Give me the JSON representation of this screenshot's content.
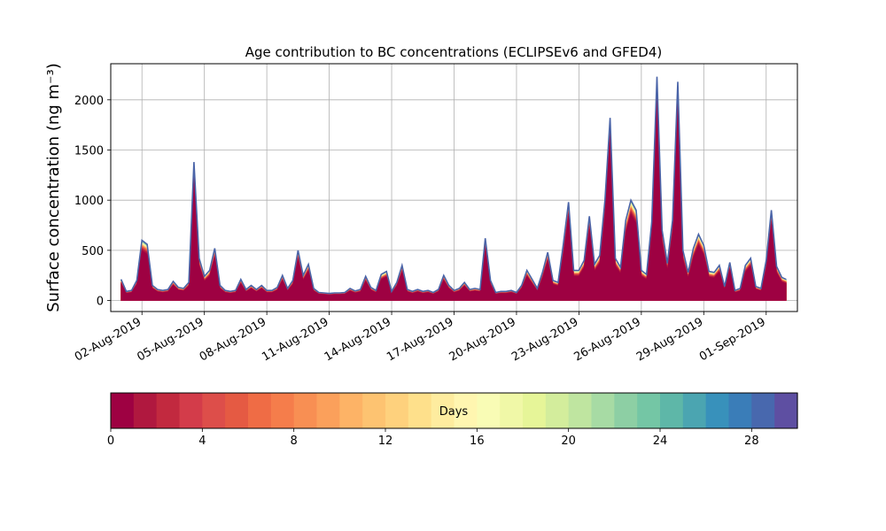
{
  "chart_data": [
    {
      "type": "area",
      "title": "Age contribution to BC concentrations (ECLIPSEv6 and GFED4)",
      "ylabel": "Surface concentration (ng m⁻³)",
      "xlabel": "",
      "grid": true,
      "ylim": [
        -110,
        2360
      ],
      "xlim": [
        "2019-07-31T12:00",
        "2019-09-02T12:00"
      ],
      "y_ticks": [
        0,
        500,
        1000,
        1500,
        2000
      ],
      "x_ticks": [
        "02-Aug-2019",
        "05-Aug-2019",
        "08-Aug-2019",
        "11-Aug-2019",
        "14-Aug-2019",
        "17-Aug-2019",
        "20-Aug-2019",
        "23-Aug-2019",
        "26-Aug-2019",
        "29-Aug-2019",
        "01-Sep-2019"
      ],
      "x_tick_dates": [
        "2019-08-02",
        "2019-08-05",
        "2019-08-08",
        "2019-08-11",
        "2019-08-14",
        "2019-08-17",
        "2019-08-20",
        "2019-08-23",
        "2019-08-26",
        "2019-08-29",
        "2019-09-01"
      ],
      "stacking": "cumulative contribution by age (days), youngest at bottom",
      "series": [
        {
          "total": [
            [
              "2019-08-01T00:00",
              210
            ],
            [
              "2019-08-01T06:00",
              90
            ],
            [
              "2019-08-01T12:00",
              100
            ],
            [
              "2019-08-01T18:00",
              200
            ],
            [
              "2019-08-02T00:00",
              600
            ],
            [
              "2019-08-02T06:00",
              560
            ],
            [
              "2019-08-02T12:00",
              150
            ],
            [
              "2019-08-02T18:00",
              110
            ],
            [
              "2019-08-03T00:00",
              100
            ],
            [
              "2019-08-03T06:00",
              110
            ],
            [
              "2019-08-03T12:00",
              190
            ],
            [
              "2019-08-03T18:00",
              130
            ],
            [
              "2019-08-04T00:00",
              120
            ],
            [
              "2019-08-04T06:00",
              180
            ],
            [
              "2019-08-04T12:00",
              1380
            ],
            [
              "2019-08-04T18:00",
              420
            ],
            [
              "2019-08-05T00:00",
              240
            ],
            [
              "2019-08-05T06:00",
              300
            ],
            [
              "2019-08-05T12:00",
              520
            ],
            [
              "2019-08-05T18:00",
              150
            ],
            [
              "2019-08-06T00:00",
              100
            ],
            [
              "2019-08-06T06:00",
              90
            ],
            [
              "2019-08-06T12:00",
              100
            ],
            [
              "2019-08-06T18:00",
              210
            ],
            [
              "2019-08-07T00:00",
              110
            ],
            [
              "2019-08-07T06:00",
              150
            ],
            [
              "2019-08-07T12:00",
              110
            ],
            [
              "2019-08-07T18:00",
              150
            ],
            [
              "2019-08-08T00:00",
              100
            ],
            [
              "2019-08-08T06:00",
              100
            ],
            [
              "2019-08-08T12:00",
              130
            ],
            [
              "2019-08-08T18:00",
              250
            ],
            [
              "2019-08-09T00:00",
              120
            ],
            [
              "2019-08-09T06:00",
              200
            ],
            [
              "2019-08-09T12:00",
              500
            ],
            [
              "2019-08-09T18:00",
              250
            ],
            [
              "2019-08-10T00:00",
              360
            ],
            [
              "2019-08-10T06:00",
              120
            ],
            [
              "2019-08-10T12:00",
              80
            ],
            [
              "2019-08-10T18:00",
              75
            ],
            [
              "2019-08-11T00:00",
              70
            ],
            [
              "2019-08-11T06:00",
              75
            ],
            [
              "2019-08-11T12:00",
              75
            ],
            [
              "2019-08-11T18:00",
              80
            ],
            [
              "2019-08-12T00:00",
              120
            ],
            [
              "2019-08-12T06:00",
              95
            ],
            [
              "2019-08-12T12:00",
              110
            ],
            [
              "2019-08-12T18:00",
              240
            ],
            [
              "2019-08-13T00:00",
              130
            ],
            [
              "2019-08-13T06:00",
              100
            ],
            [
              "2019-08-13T12:00",
              260
            ],
            [
              "2019-08-13T18:00",
              290
            ],
            [
              "2019-08-14T00:00",
              90
            ],
            [
              "2019-08-14T06:00",
              180
            ],
            [
              "2019-08-14T12:00",
              350
            ],
            [
              "2019-08-14T18:00",
              110
            ],
            [
              "2019-08-15T00:00",
              90
            ],
            [
              "2019-08-15T06:00",
              110
            ],
            [
              "2019-08-15T12:00",
              90
            ],
            [
              "2019-08-15T18:00",
              100
            ],
            [
              "2019-08-16T00:00",
              80
            ],
            [
              "2019-08-16T06:00",
              110
            ],
            [
              "2019-08-16T12:00",
              250
            ],
            [
              "2019-08-16T18:00",
              150
            ],
            [
              "2019-08-17T00:00",
              100
            ],
            [
              "2019-08-17T06:00",
              120
            ],
            [
              "2019-08-17T12:00",
              180
            ],
            [
              "2019-08-17T18:00",
              110
            ],
            [
              "2019-08-18T00:00",
              120
            ],
            [
              "2019-08-18T06:00",
              110
            ],
            [
              "2019-08-18T12:00",
              620
            ],
            [
              "2019-08-18T18:00",
              200
            ],
            [
              "2019-08-19T00:00",
              80
            ],
            [
              "2019-08-19T06:00",
              90
            ],
            [
              "2019-08-19T12:00",
              90
            ],
            [
              "2019-08-19T18:00",
              100
            ],
            [
              "2019-08-20T00:00",
              80
            ],
            [
              "2019-08-20T06:00",
              150
            ],
            [
              "2019-08-20T12:00",
              300
            ],
            [
              "2019-08-20T18:00",
              210
            ],
            [
              "2019-08-21T00:00",
              120
            ],
            [
              "2019-08-21T06:00",
              280
            ],
            [
              "2019-08-21T12:00",
              480
            ],
            [
              "2019-08-21T18:00",
              200
            ],
            [
              "2019-08-22T00:00",
              180
            ],
            [
              "2019-08-22T06:00",
              560
            ],
            [
              "2019-08-22T12:00",
              980
            ],
            [
              "2019-08-22T18:00",
              300
            ],
            [
              "2019-08-23T00:00",
              300
            ],
            [
              "2019-08-23T06:00",
              400
            ],
            [
              "2019-08-23T12:00",
              840
            ],
            [
              "2019-08-23T18:00",
              360
            ],
            [
              "2019-08-24T00:00",
              450
            ],
            [
              "2019-08-24T06:00",
              1000
            ],
            [
              "2019-08-24T12:00",
              1820
            ],
            [
              "2019-08-24T18:00",
              420
            ],
            [
              "2019-08-25T00:00",
              330
            ],
            [
              "2019-08-25T06:00",
              800
            ],
            [
              "2019-08-25T12:00",
              1000
            ],
            [
              "2019-08-25T18:00",
              900
            ],
            [
              "2019-08-26T00:00",
              300
            ],
            [
              "2019-08-26T06:00",
              260
            ],
            [
              "2019-08-26T12:00",
              780
            ],
            [
              "2019-08-26T18:00",
              2230
            ],
            [
              "2019-08-27T00:00",
              700
            ],
            [
              "2019-08-27T06:00",
              370
            ],
            [
              "2019-08-27T12:00",
              800
            ],
            [
              "2019-08-27T18:00",
              2180
            ],
            [
              "2019-08-28T00:00",
              500
            ],
            [
              "2019-08-28T06:00",
              280
            ],
            [
              "2019-08-28T12:00",
              520
            ],
            [
              "2019-08-28T18:00",
              660
            ],
            [
              "2019-08-29T00:00",
              550
            ],
            [
              "2019-08-29T06:00",
              290
            ],
            [
              "2019-08-29T12:00",
              280
            ],
            [
              "2019-08-29T18:00",
              350
            ],
            [
              "2019-08-30T00:00",
              140
            ],
            [
              "2019-08-30T06:00",
              380
            ],
            [
              "2019-08-30T12:00",
              100
            ],
            [
              "2019-08-30T18:00",
              120
            ],
            [
              "2019-08-31T00:00",
              350
            ],
            [
              "2019-08-31T06:00",
              420
            ],
            [
              "2019-08-31T12:00",
              140
            ],
            [
              "2019-08-31T18:00",
              120
            ],
            [
              "2019-09-01T00:00",
              400
            ],
            [
              "2019-09-01T06:00",
              900
            ],
            [
              "2019-09-01T12:00",
              340
            ],
            [
              "2019-09-01T18:00",
              230
            ],
            [
              "2019-09-01T23:00",
              210
            ]
          ]
        }
      ]
    },
    {
      "type": "heatmap",
      "label": "Days",
      "range": [
        0,
        30
      ],
      "ticks": [
        0,
        4,
        8,
        12,
        16,
        20,
        24,
        28
      ],
      "colors": [
        "#9e0142",
        "#b0183f",
        "#c2293f",
        "#d33c4a",
        "#dd4e4a",
        "#e55a43",
        "#ef6c45",
        "#f57d4b",
        "#f88f53",
        "#fba05b",
        "#fdb366",
        "#fdc371",
        "#fed17d",
        "#fee08b",
        "#feec9f",
        "#fff6b0",
        "#f9fcb5",
        "#f0f8a7",
        "#e6f598",
        "#d3ed9c",
        "#bfe5a0",
        "#a7dba4",
        "#8dcfa4",
        "#74c6a5",
        "#5eb7a8",
        "#4ba5b1",
        "#3891bb",
        "#3a7db8",
        "#4868ae",
        "#5e4fa2"
      ]
    }
  ]
}
